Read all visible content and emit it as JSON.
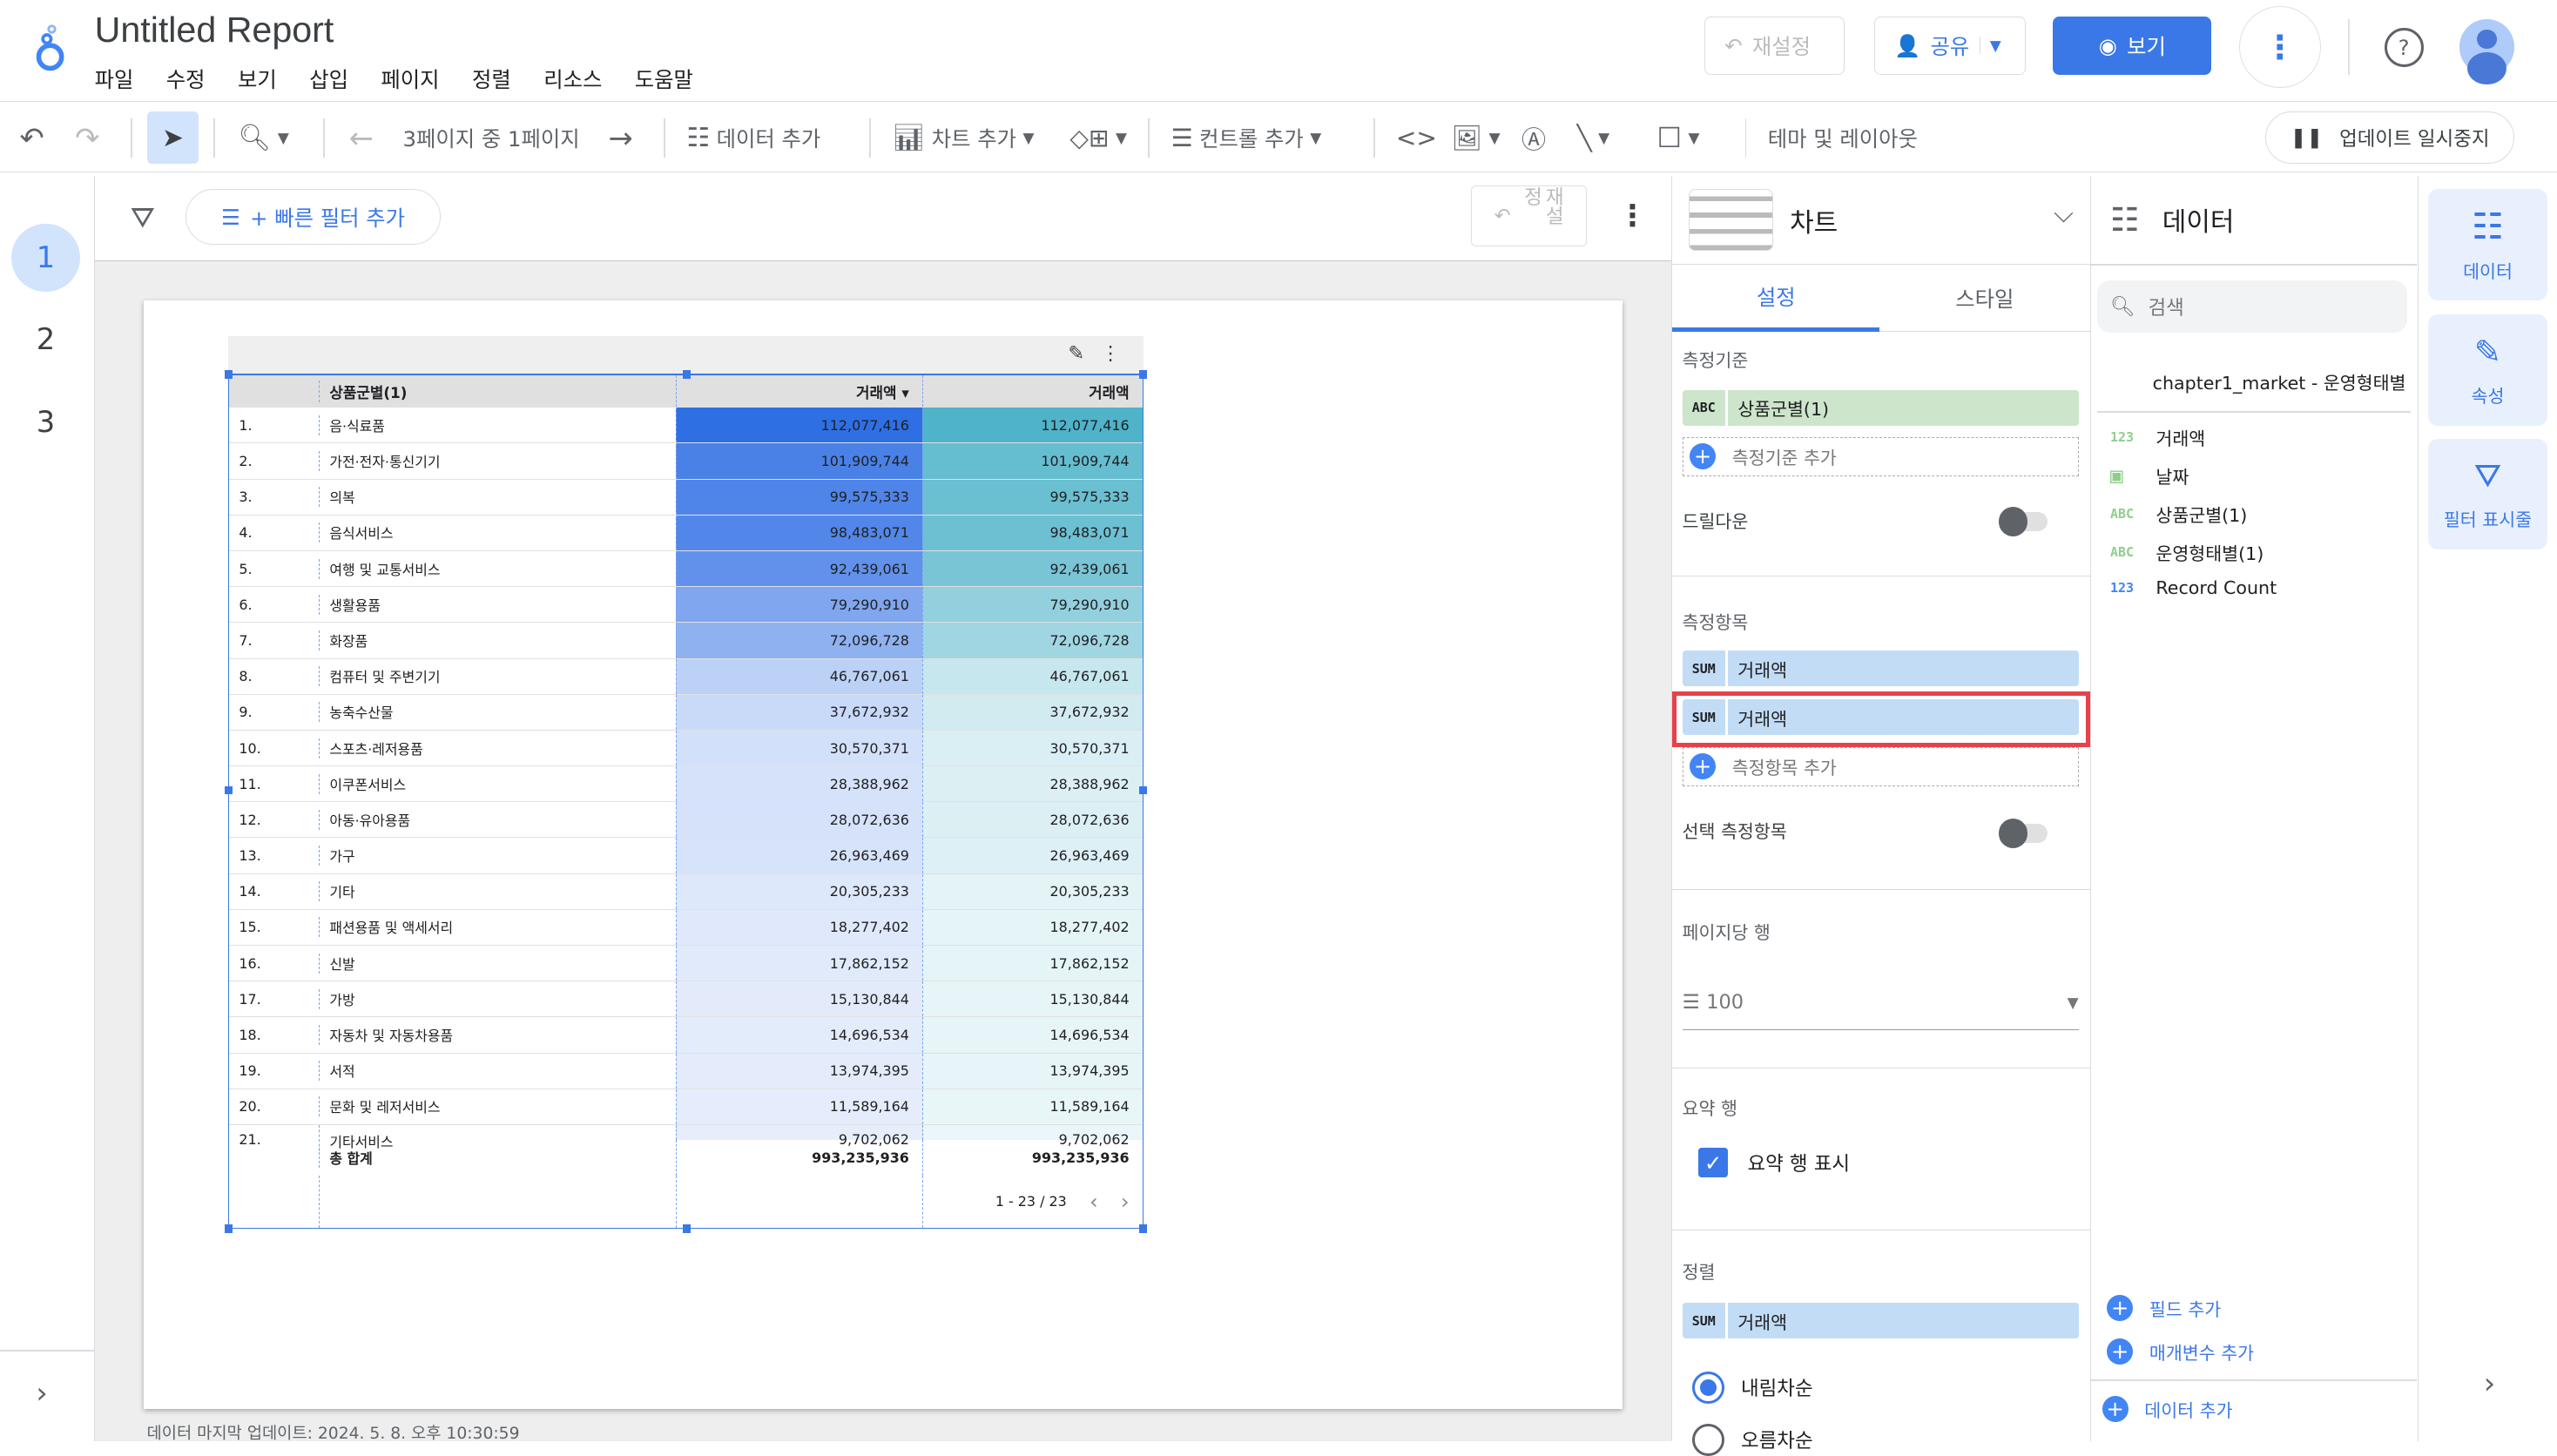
{
  "app": {
    "title": "Untitled Report",
    "menu": [
      "파일",
      "수정",
      "보기",
      "삽입",
      "페이지",
      "정렬",
      "리소스",
      "도움말"
    ],
    "reset_label": "재설정",
    "share_label": "공유",
    "view_label": "보기"
  },
  "toolbar": {
    "page_indicator": "3페이지 중 1페이지",
    "add_data": "데이터 추가",
    "add_chart": "차트 추가",
    "add_control": "컨트롤 추가",
    "theme_layout": "테마 및 레이아웃",
    "pause_updates": "업데이트 일시중지"
  },
  "pages": [
    "1",
    "2",
    "3"
  ],
  "filterbar": {
    "quick_filter": "+ 빠른 필터 추가",
    "reset_label": "재설정"
  },
  "table": {
    "headers": [
      "상품군별(1)",
      "거래액 ▾",
      "거래액"
    ],
    "rows": [
      [
        "1.",
        "음·식료품",
        "112,077,416"
      ],
      [
        "2.",
        "가전·전자·통신기기",
        "101,909,744"
      ],
      [
        "3.",
        "의복",
        "99,575,333"
      ],
      [
        "4.",
        "음식서비스",
        "98,483,071"
      ],
      [
        "5.",
        "여행 및 교통서비스",
        "92,439,061"
      ],
      [
        "6.",
        "생활용품",
        "79,290,910"
      ],
      [
        "7.",
        "화장품",
        "72,096,728"
      ],
      [
        "8.",
        "컴퓨터 및 주변기기",
        "46,767,061"
      ],
      [
        "9.",
        "농축수산물",
        "37,672,932"
      ],
      [
        "10.",
        "스포츠·레저용품",
        "30,570,371"
      ],
      [
        "11.",
        "이쿠폰서비스",
        "28,388,962"
      ],
      [
        "12.",
        "아동·유아용품",
        "28,072,636"
      ],
      [
        "13.",
        "가구",
        "26,963,469"
      ],
      [
        "14.",
        "기타",
        "20,305,233"
      ],
      [
        "15.",
        "패션용품 및 액세서리",
        "18,277,402"
      ],
      [
        "16.",
        "신발",
        "17,862,152"
      ],
      [
        "17.",
        "가방",
        "15,130,844"
      ],
      [
        "18.",
        "자동차 및 자동차용품",
        "14,696,534"
      ],
      [
        "19.",
        "서적",
        "13,974,395"
      ],
      [
        "20.",
        "문화 및 레저서비스",
        "11,589,164"
      ],
      [
        "21.",
        "기타서비스",
        "9,702,062"
      ]
    ],
    "total_label": "총 합계",
    "total": "993,235,936",
    "pagination": "1 - 23 / 23",
    "colors": {
      "col1": "#2f6fe4",
      "col2": "#4fb3c9"
    }
  },
  "footer": "데이터 마지막 업데이트: 2024. 5. 8. 오후 10:30:59",
  "props": {
    "chart_type": "차트",
    "tabs": [
      "설정",
      "스타일"
    ],
    "dimension_label": "측정기준",
    "dimension": "상품군별(1)",
    "add_dimension": "측정기준 추가",
    "drilldown": "드릴다운",
    "drilldown_on": false,
    "metric_label": "측정항목",
    "metrics": [
      "거래액",
      "거래액"
    ],
    "add_metric": "측정항목 추가",
    "optional_metrics": "선택 측정항목",
    "optional_on": false,
    "rows_per_page_label": "페이지당 행",
    "rows_per_page": "100",
    "summary_label": "요약 행",
    "summary_show": "요약 행 표시",
    "summary_checked": true,
    "sort_label": "정렬",
    "sort_field": "거래액",
    "sort_desc": "내림차순",
    "sort_asc": "오름차순",
    "agg": "SUM",
    "dim_type": "ABC"
  },
  "data_panel": {
    "title": "데이터",
    "search_placeholder": "검색",
    "source": "chapter1_market - 운영형태별",
    "fields": [
      {
        "type": "123",
        "name": "거래액"
      },
      {
        "type": "date",
        "name": "날짜"
      },
      {
        "type": "ABC",
        "name": "상품군별(1)"
      },
      {
        "type": "ABC",
        "name": "운영형태별(1)"
      },
      {
        "type": "123",
        "name": "Record Count"
      }
    ],
    "add_field": "필드 추가",
    "add_param": "매개변수 추가",
    "add_data": "데이터 추가"
  },
  "right_rail": [
    "데이터",
    "속성",
    "필터 표시줄"
  ]
}
